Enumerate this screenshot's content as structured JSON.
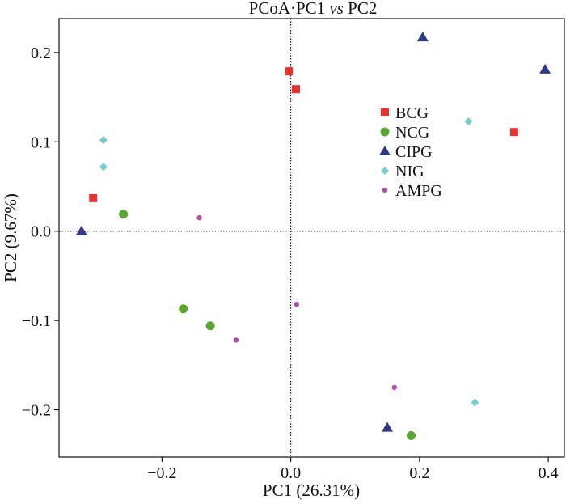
{
  "chart_data": {
    "type": "scatter",
    "title": {
      "prefix": "PCoA·PC1 ",
      "vs": "vs",
      "suffix": " PC2"
    },
    "xlabel": "PC1 (26.31%)",
    "ylabel": "PC2 (9.67%)",
    "xlim": [
      -0.36,
      0.425
    ],
    "ylim": [
      -0.253,
      0.238
    ],
    "x_ticks": [
      {
        "value": -0.2,
        "label": "−0.2"
      },
      {
        "value": 0.0,
        "label": "0.0"
      },
      {
        "value": 0.2,
        "label": "0.2"
      },
      {
        "value": 0.4,
        "label": "0.4"
      }
    ],
    "y_ticks": [
      {
        "value": -0.2,
        "label": "−0.2"
      },
      {
        "value": -0.1,
        "label": "−0.1"
      },
      {
        "value": 0.0,
        "label": "0.0"
      },
      {
        "value": 0.1,
        "label": "0.1"
      },
      {
        "value": 0.2,
        "label": "0.2"
      }
    ],
    "reference_lines": {
      "x": 0,
      "y": 0,
      "style": "dotted"
    },
    "legend_position": "upper-right",
    "series": [
      {
        "name": "BCG",
        "marker": "square",
        "color": "#e8322e",
        "points": [
          [
            -0.003,
            0.179
          ],
          [
            0.008,
            0.159
          ],
          [
            0.347,
            0.111
          ],
          [
            -0.307,
            0.037
          ]
        ]
      },
      {
        "name": "NCG",
        "marker": "circle",
        "color": "#5aa632",
        "points": [
          [
            -0.26,
            0.019
          ],
          [
            -0.167,
            -0.087
          ],
          [
            -0.125,
            -0.106
          ],
          [
            0.187,
            -0.229
          ]
        ]
      },
      {
        "name": "CIPG",
        "marker": "triangle",
        "color": "#2e3a8a",
        "points": [
          [
            0.205,
            0.217
          ],
          [
            0.395,
            0.181
          ],
          [
            -0.325,
            0.0
          ],
          [
            0.15,
            -0.22
          ]
        ]
      },
      {
        "name": "NIG",
        "marker": "diamond",
        "color": "#76cccf",
        "points": [
          [
            -0.291,
            0.102
          ],
          [
            -0.291,
            0.072
          ],
          [
            0.276,
            0.123
          ],
          [
            0.286,
            -0.192
          ]
        ]
      },
      {
        "name": "AMPG",
        "marker": "small-circle",
        "color": "#b04ca8",
        "points": [
          [
            -0.142,
            0.015
          ],
          [
            -0.085,
            -0.122
          ],
          [
            0.009,
            -0.082
          ],
          [
            0.161,
            -0.175
          ]
        ]
      }
    ]
  }
}
